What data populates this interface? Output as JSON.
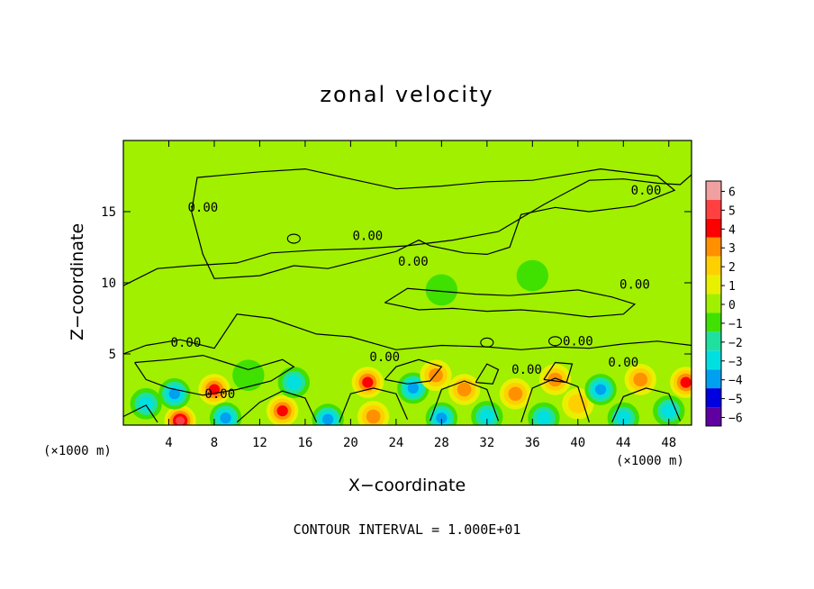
{
  "chart_data": {
    "type": "heatmap",
    "title": "zonal velocity",
    "xlabel": "X−coordinate",
    "ylabel": "Z−coordinate",
    "x_unit": "(×1000 m)",
    "x_unit_right": "(×1000 m)",
    "xlim": [
      0,
      50
    ],
    "ylim": [
      0,
      20
    ],
    "x_ticks": [
      4,
      8,
      12,
      16,
      20,
      24,
      28,
      32,
      36,
      40,
      44,
      48
    ],
    "y_ticks": [
      5,
      10,
      15
    ],
    "footer": "CONTOUR INTERVAL = 1.000E+01",
    "contour_label": "0.00",
    "colorbar": {
      "levels": [
        6,
        5,
        4,
        3,
        2,
        1,
        0,
        -1,
        -2,
        -3,
        -4,
        -5,
        -6
      ],
      "labels": [
        "6",
        "5",
        "4",
        "3",
        "2",
        "1",
        "0",
        "−1",
        "−2",
        "−3",
        "−4",
        "−5",
        "−6"
      ],
      "colors": [
        "#f0a0a0",
        "#ff4040",
        "#ff0000",
        "#ff9000",
        "#ffd000",
        "#e8f000",
        "#a0f000",
        "#40e000",
        "#20e0a0",
        "#00e0e0",
        "#00a0f0",
        "#0000e0",
        "#6000a0"
      ]
    },
    "features": [
      {
        "x": 5,
        "z": 0.3,
        "v": 5
      },
      {
        "x": 8,
        "z": 2.5,
        "v": 4
      },
      {
        "x": 4.5,
        "z": 2.2,
        "v": -4
      },
      {
        "x": 2,
        "z": 1.5,
        "v": -3
      },
      {
        "x": 9,
        "z": 0.5,
        "v": -4
      },
      {
        "x": 14,
        "z": 1.0,
        "v": 4
      },
      {
        "x": 15,
        "z": 3.0,
        "v": -3
      },
      {
        "x": 18,
        "z": 0.4,
        "v": -4
      },
      {
        "x": 21.5,
        "z": 3.0,
        "v": 4
      },
      {
        "x": 22,
        "z": 0.6,
        "v": 3
      },
      {
        "x": 25.5,
        "z": 2.6,
        "v": -4
      },
      {
        "x": 27.5,
        "z": 3.5,
        "v": 3
      },
      {
        "x": 28,
        "z": 0.5,
        "v": -4
      },
      {
        "x": 30,
        "z": 2.5,
        "v": 3
      },
      {
        "x": 32,
        "z": 0.6,
        "v": -3
      },
      {
        "x": 34.5,
        "z": 2.2,
        "v": 3
      },
      {
        "x": 37,
        "z": 0.5,
        "v": -3
      },
      {
        "x": 38,
        "z": 3.2,
        "v": 3
      },
      {
        "x": 40,
        "z": 1.5,
        "v": 2
      },
      {
        "x": 42,
        "z": 2.5,
        "v": -4
      },
      {
        "x": 44,
        "z": 0.5,
        "v": -3
      },
      {
        "x": 45.5,
        "z": 3.2,
        "v": 3
      },
      {
        "x": 48,
        "z": 1.0,
        "v": -3
      },
      {
        "x": 49.5,
        "z": 3.0,
        "v": 4
      },
      {
        "x": 11,
        "z": 3.5,
        "v": -1
      },
      {
        "x": 28,
        "z": 9.5,
        "v": -1
      },
      {
        "x": 36,
        "z": 10.5,
        "v": -1
      }
    ]
  }
}
